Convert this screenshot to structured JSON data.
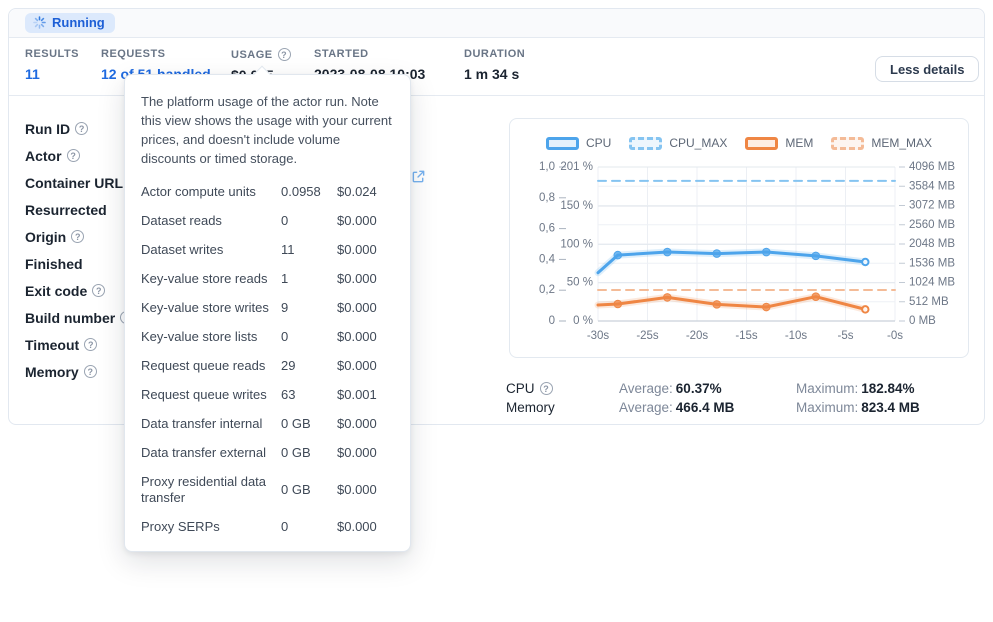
{
  "header": {
    "status": "Running"
  },
  "stats": {
    "results": {
      "label": "RESULTS",
      "value": "11"
    },
    "requests": {
      "label": "REQUESTS",
      "value": "12 of 51 handled"
    },
    "usage": {
      "label": "USAGE",
      "value": "$0.025"
    },
    "started": {
      "label": "STARTED",
      "value": "2023-08-08 10:03"
    },
    "duration": {
      "label": "DURATION",
      "value": "1 m 34 s"
    },
    "less_details_label": "Less details"
  },
  "run_fields": [
    {
      "label": "Run ID",
      "help": true
    },
    {
      "label": "Actor",
      "help": true
    },
    {
      "label": "Container URL",
      "help": true
    },
    {
      "label": "Resurrected",
      "help": false
    },
    {
      "label": "Origin",
      "help": true
    },
    {
      "label": "Finished",
      "help": false
    },
    {
      "label": "Exit code",
      "help": true
    },
    {
      "label": "Build number",
      "help": true
    },
    {
      "label": "Timeout",
      "help": true
    },
    {
      "label": "Memory",
      "help": true
    }
  ],
  "usage_tooltip": {
    "description": "The platform usage of the actor run. Note this view shows the usage with your current prices, and doesn't include volume discounts or timed storage.",
    "rows": [
      {
        "label": "Actor compute units",
        "value": "0.0958",
        "price": "$0.024"
      },
      {
        "label": "Dataset reads",
        "value": "0",
        "price": "$0.000"
      },
      {
        "label": "Dataset writes",
        "value": "11",
        "price": "$0.000"
      },
      {
        "label": "Key-value store reads",
        "value": "1",
        "price": "$0.000"
      },
      {
        "label": "Key-value store writes",
        "value": "9",
        "price": "$0.000"
      },
      {
        "label": "Key-value store lists",
        "value": "0",
        "price": "$0.000"
      },
      {
        "label": "Request queue reads",
        "value": "29",
        "price": "$0.000"
      },
      {
        "label": "Request queue writes",
        "value": "63",
        "price": "$0.001"
      },
      {
        "label": "Data transfer internal",
        "value": "0 GB",
        "price": "$0.000"
      },
      {
        "label": "Data transfer external",
        "value": "0 GB",
        "price": "$0.000"
      },
      {
        "label": "Proxy residential data transfer",
        "value": "0 GB",
        "price": "$0.000"
      },
      {
        "label": "Proxy SERPs",
        "value": "0",
        "price": "$0.000"
      }
    ]
  },
  "chart_data": {
    "type": "line",
    "x": [
      -30,
      -28,
      -23,
      -18,
      -13,
      -8,
      -3
    ],
    "x_range": [
      -30,
      0
    ],
    "x_ticks": {
      "values": [
        -30,
        -25,
        -20,
        -15,
        -10,
        -5,
        0
      ],
      "labels": [
        "-30s",
        "-25s",
        "-20s",
        "-15s",
        "-10s",
        "-5s",
        "-0s"
      ]
    },
    "axes": {
      "normalized": {
        "labels": [
          "1,0",
          "0,8",
          "0,6",
          "0,4",
          "0,2",
          "0"
        ],
        "values": [
          1,
          0.8,
          0.6,
          0.4,
          0.2,
          0
        ],
        "max": 1
      },
      "percent": {
        "labels": [
          "201 %",
          "150 %",
          "100 %",
          "50 %",
          "0 %"
        ],
        "values": [
          201,
          150,
          100,
          50,
          0
        ],
        "max": 201
      },
      "mb": {
        "labels": [
          "4096 MB",
          "3584 MB",
          "3072 MB",
          "2560 MB",
          "2048 MB",
          "1536 MB",
          "1024 MB",
          "512 MB",
          "0 MB"
        ],
        "values": [
          4096,
          3584,
          3072,
          2560,
          2048,
          1536,
          1024,
          512,
          0
        ],
        "max": 4096
      }
    },
    "series": [
      {
        "name": "CPU",
        "axis": "percent",
        "style": "solid",
        "color": "#4da4eb",
        "values": [
          63,
          86,
          90,
          88,
          90,
          85,
          77
        ]
      },
      {
        "name": "CPU_MAX",
        "axis": "percent",
        "style": "dashed",
        "color": "#85c4f1",
        "constant": 182.84
      },
      {
        "name": "MEM",
        "axis": "mb",
        "style": "solid",
        "color": "#ef8644",
        "values": [
          426,
          452,
          628,
          442,
          372,
          646,
          309
        ]
      },
      {
        "name": "MEM_MAX",
        "axis": "mb",
        "style": "dashed",
        "color": "#f4bb97",
        "constant": 823.4
      }
    ],
    "legend_position": "top",
    "grid": true,
    "title": ""
  },
  "resource_summary": {
    "cpu": {
      "label": "CPU",
      "help": true,
      "average_label": "Average:",
      "average": "60.37%",
      "maximum_label": "Maximum:",
      "maximum": "182.84%"
    },
    "memory": {
      "label": "Memory",
      "help": false,
      "average_label": "Average:",
      "average": "466.4 MB",
      "maximum_label": "Maximum:",
      "maximum": "823.4 MB"
    }
  },
  "colors": {
    "accent_blue": "#1f6ae0",
    "badge_bg": "#dce9fc",
    "badge_text": "#1d5fd6",
    "cpu_line": "#4da4eb",
    "mem_line": "#ef8644",
    "border": "#e2e8f0"
  }
}
